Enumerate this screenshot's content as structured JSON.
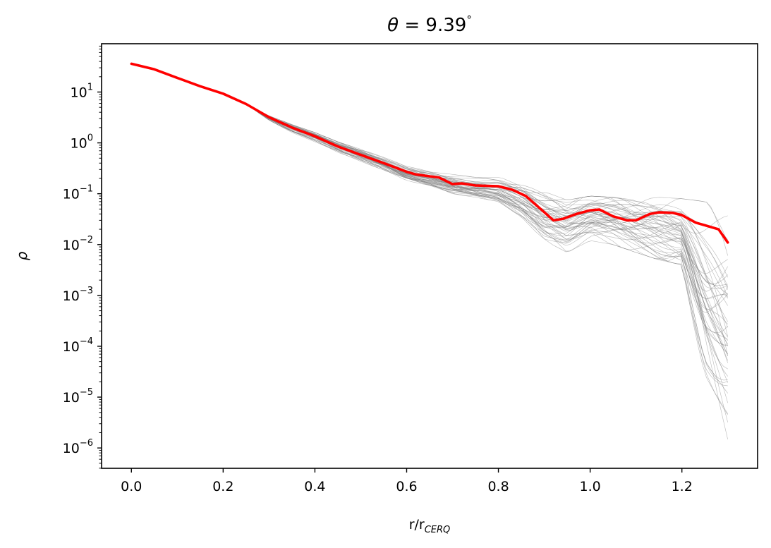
{
  "chart_data": {
    "type": "line",
    "title": {
      "symbol": "θ",
      "equals": " = ",
      "value": "9.39",
      "unit": "°"
    },
    "xlabel": {
      "base": "r/r",
      "sub": "CERQ"
    },
    "ylabel": "ρ",
    "y_scale": "log",
    "xlim": [
      -0.065,
      1.365
    ],
    "ylim_exp": [
      -6.4,
      1.95
    ],
    "x_ticks": [
      0.0,
      0.2,
      0.4,
      0.6,
      0.8,
      1.0,
      1.2
    ],
    "x_tick_labels": [
      "0.0",
      "0.2",
      "0.4",
      "0.6",
      "0.8",
      "1.0",
      "1.2"
    ],
    "y_tick_exponents": [
      1,
      0,
      -1,
      -2,
      -3,
      -4,
      -5,
      -6
    ],
    "y_tick_labels": [
      {
        "base": "10",
        "exp": "1"
      },
      {
        "base": "10",
        "exp": "0"
      },
      {
        "base": "10",
        "exp": "−1"
      },
      {
        "base": "10",
        "exp": "−2"
      },
      {
        "base": "10",
        "exp": "−3"
      },
      {
        "base": "10",
        "exp": "−4"
      },
      {
        "base": "10",
        "exp": "−5"
      },
      {
        "base": "10",
        "exp": "−6"
      }
    ],
    "grid": false,
    "mean_series": {
      "color": "#ff0000",
      "x": [
        0.0,
        0.05,
        0.1,
        0.15,
        0.2,
        0.25,
        0.3,
        0.35,
        0.4,
        0.45,
        0.5,
        0.55,
        0.6,
        0.62,
        0.65,
        0.67,
        0.7,
        0.72,
        0.75,
        0.8,
        0.83,
        0.86,
        0.89,
        0.92,
        0.94,
        0.97,
        1.0,
        1.02,
        1.05,
        1.08,
        1.1,
        1.13,
        1.15,
        1.18,
        1.2,
        1.23,
        1.25,
        1.28,
        1.3
      ],
      "y": [
        36,
        28,
        19,
        13,
        9.3,
        5.8,
        3.2,
        2.0,
        1.35,
        0.85,
        0.58,
        0.4,
        0.27,
        0.24,
        0.22,
        0.21,
        0.155,
        0.16,
        0.145,
        0.14,
        0.12,
        0.09,
        0.052,
        0.03,
        0.032,
        0.04,
        0.047,
        0.049,
        0.036,
        0.03,
        0.03,
        0.04,
        0.043,
        0.042,
        0.038,
        0.027,
        0.024,
        0.02,
        0.011
      ]
    },
    "ensemble": {
      "color": "#808080",
      "count": 50,
      "x": [
        0.0,
        0.05,
        0.1,
        0.15,
        0.2,
        0.25,
        0.3,
        0.35,
        0.4,
        0.45,
        0.5,
        0.55,
        0.6,
        0.65,
        0.7,
        0.75,
        0.8,
        0.85,
        0.9,
        0.95,
        1.0,
        1.05,
        1.1,
        1.15,
        1.2,
        1.25,
        1.3
      ],
      "y_min": [
        36,
        28,
        19,
        13,
        9.3,
        5.8,
        2.8,
        1.6,
        1.05,
        0.62,
        0.42,
        0.28,
        0.18,
        0.14,
        0.1,
        0.085,
        0.07,
        0.035,
        0.012,
        0.007,
        0.012,
        0.01,
        0.007,
        0.005,
        0.004,
        2e-05,
        8e-07
      ],
      "y_max": [
        36,
        28,
        19,
        13,
        9.3,
        5.8,
        3.4,
        2.3,
        1.6,
        1.05,
        0.75,
        0.52,
        0.35,
        0.29,
        0.24,
        0.21,
        0.21,
        0.17,
        0.11,
        0.075,
        0.09,
        0.085,
        0.075,
        0.085,
        0.08,
        0.07,
        0.05
      ]
    }
  }
}
